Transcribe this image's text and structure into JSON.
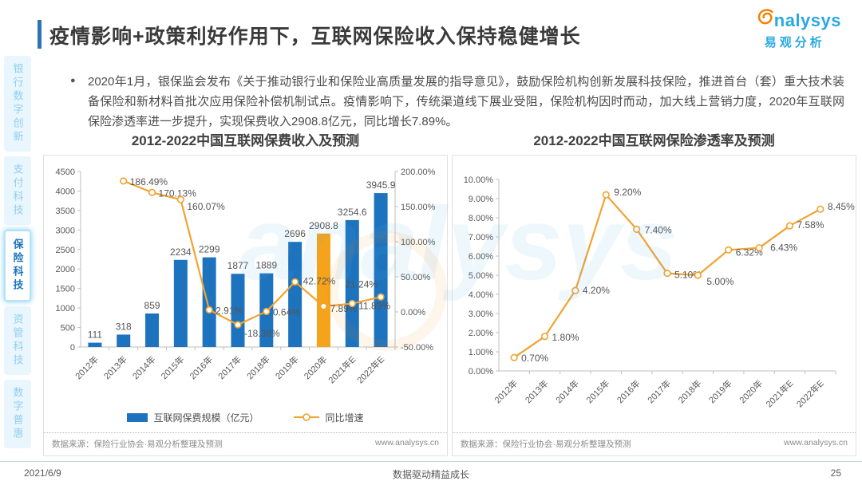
{
  "page": {
    "title": "疫情影响+政策利好作用下，互联网保险收入保持稳健增长",
    "bullet": "●",
    "bullet_text": "2020年1月，银保监会发布《关于推动银行业和保险业高质量发展的指导意见》，鼓励保险机构创新发展科技保险，推进首台（套）重大技术装备保险和新材料首批次应用保险补偿机制试点。疫情影响下，传统渠道线下展业受阻，保险机构因时而动，加大线上营销力度，2020年互联网保险渗透率进一步提升，实现保费收入2908.8亿元，同比增长7.89%。",
    "logo": {
      "brand": "analysys",
      "brand_rest": "nalysys",
      "brand_cn": "易观分析"
    },
    "footer": {
      "date": "2021/6/9",
      "slogan": "数据驱动精益成长",
      "page_number": "25"
    }
  },
  "sidebar": {
    "items": [
      {
        "label": "银行数字创新",
        "active": false
      },
      {
        "label": "支付科技",
        "active": false
      },
      {
        "label": "保险科技",
        "active": true
      },
      {
        "label": "资管科技",
        "active": false
      },
      {
        "label": "数字普惠",
        "active": false
      }
    ]
  },
  "colors": {
    "accent": "#2e74b5",
    "brand_blue": "#2aa9e0",
    "brand_orange": "#f08300",
    "bar_blue": "#1e73be",
    "bar_highlight": "#f5a31a",
    "line_orange": "#f0a330"
  },
  "chart_data": [
    {
      "type": "bar",
      "title": "2012-2022中国互联网保费收入及预测",
      "categories": [
        "2012年",
        "2013年",
        "2014年",
        "2015年",
        "2016年",
        "2017年",
        "2018年",
        "2019年",
        "2020年",
        "2021年E",
        "2022年E"
      ],
      "series": [
        {
          "name": "互联网保费规模（亿元）",
          "kind": "bar",
          "axis": "left",
          "color": "#1e73be",
          "highlight": {
            "index": 8,
            "color": "#f5a31a"
          },
          "values": [
            111,
            318,
            859,
            2234,
            2299,
            1877,
            1889,
            2696,
            2908.8,
            3254.6,
            3945.9
          ],
          "labels": [
            "111",
            "318",
            "859",
            "2234",
            "2299",
            "1877",
            "1889",
            "2696",
            "2908.8",
            "3254.6",
            "3945.9"
          ]
        },
        {
          "name": "同比增速",
          "kind": "line",
          "axis": "right",
          "color": "#f0a330",
          "values": [
            null,
            186.49,
            170.13,
            160.07,
            2.91,
            -18.36,
            0.64,
            42.72,
            7.89,
            11.89,
            21.24
          ],
          "labels": [
            "",
            "186.49%",
            "170.13%",
            "160.07%",
            "2.91%",
            "-18.36%",
            "0.64%",
            "42.72%",
            "7.89%",
            "11.89%",
            "21.24%"
          ]
        }
      ],
      "axis_left": {
        "min": 0,
        "max": 4500,
        "step": 500,
        "format": "int"
      },
      "axis_right": {
        "min": -50,
        "max": 200,
        "step": 50,
        "format": "percent2"
      },
      "legend_position": "bottom",
      "grid": false,
      "source": "数据来源：保险行业协会·易观分析整理及预测",
      "website": "www.analysys.cn"
    },
    {
      "type": "line",
      "title": "2012-2022中国互联网保险渗透率及预测",
      "categories": [
        "2012年",
        "2013年",
        "2014年",
        "2015年",
        "2016年",
        "2017年",
        "2018年",
        "2019年",
        "2020年",
        "2021年E",
        "2022年E"
      ],
      "series": [
        {
          "name": "互联网保险渗透率",
          "kind": "line",
          "axis": "left",
          "color": "#f0a330",
          "values": [
            0.7,
            1.8,
            4.2,
            9.2,
            7.4,
            5.1,
            5.0,
            6.32,
            6.43,
            7.58,
            8.45
          ],
          "labels": [
            "0.70%",
            "1.80%",
            "4.20%",
            "9.20%",
            "7.40%",
            "5.10%",
            "5.00%",
            "6.32%",
            "6.43%",
            "7.58%",
            "8.45%"
          ]
        }
      ],
      "axis_left": {
        "min": 0,
        "max": 10,
        "step": 1,
        "format": "percent2"
      },
      "grid": false,
      "source": "数据来源：保险行业协会·易观分析整理及预测",
      "website": "www.analysys.cn"
    }
  ]
}
